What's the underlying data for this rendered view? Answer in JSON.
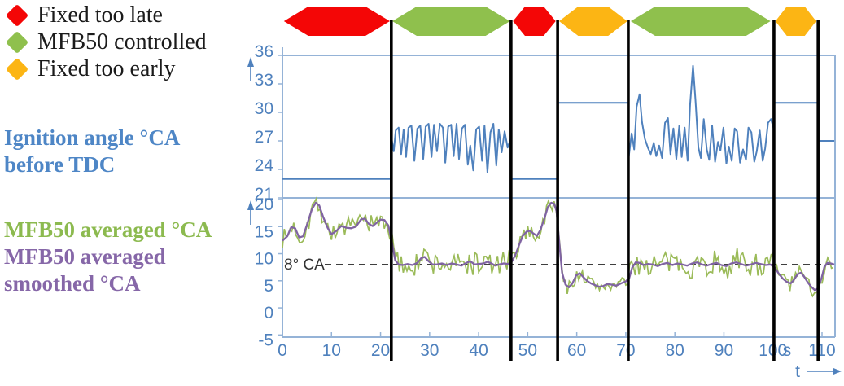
{
  "legend": {
    "items": [
      {
        "label": "Fixed too late",
        "color": "#f40606",
        "shape": "diamond"
      },
      {
        "label": "MFB50 controlled",
        "color": "#8fc04d",
        "shape": "diamond"
      },
      {
        "label": "Fixed too early",
        "color": "#fcb514",
        "shape": "diamond"
      }
    ]
  },
  "side_labels": {
    "ignition": {
      "lines": [
        "Ignition angle °CA",
        "before TDC"
      ],
      "color": "#4e86c6"
    },
    "mfb_averaged": {
      "lines": [
        "MFB50 averaged °CA"
      ],
      "color": "#8cba4f"
    },
    "mfb_smoothed": {
      "lines": [
        "MFB50 averaged",
        "smoothed °CA"
      ],
      "color": "#8667a8"
    }
  },
  "chart_data": {
    "type": "line",
    "title": "",
    "x_axis": {
      "min": 0,
      "max": 112.6,
      "ticks": [
        0,
        10,
        20,
        30,
        40,
        50,
        60,
        70,
        80,
        90,
        100,
        110
      ],
      "unit_label": "s",
      "axis_arrow_label": "t"
    },
    "panels": {
      "ignition": {
        "label": "Ignition angle °CA before TDC",
        "y_ticks": [
          21,
          24,
          27,
          30,
          33,
          36
        ],
        "y_min": 21,
        "y_max": 36
      },
      "mfb50": {
        "label": "MFB50 averaged °CA",
        "y_ticks": [
          -5,
          0,
          5,
          10,
          15,
          20
        ],
        "y_min": -5.4,
        "y_max": 20.3
      }
    },
    "reference_line": {
      "panel": "mfb50",
      "value": 8,
      "label": "8° CA",
      "style": "dashed",
      "color": "#3f3f3f"
    },
    "mode_bands": [
      {
        "mode": "Fixed too late",
        "color": "red",
        "t0": 0.3,
        "t1": 21.9
      },
      {
        "mode": "MFB50 controlled",
        "color": "green",
        "t0": 22.4,
        "t1": 46.4
      },
      {
        "mode": "Fixed too late",
        "color": "red",
        "t0": 47.0,
        "t1": 55.7
      },
      {
        "mode": "Fixed too early",
        "color": "orange",
        "t0": 56.4,
        "t1": 70.3
      },
      {
        "mode": "MFB50 controlled",
        "color": "green",
        "t0": 71.0,
        "t1": 99.5
      },
      {
        "mode": "Fixed too early",
        "color": "orange",
        "t0": 100.5,
        "t1": 108.8
      }
    ],
    "segment_boundaries_t": [
      22.2,
      46.6,
      56.1,
      70.5,
      100.2,
      109.2
    ],
    "colors": {
      "frame": "#95b3d7",
      "tick_text": "#4f81bd",
      "red": "#f40606",
      "green": "#8fc04d",
      "orange": "#fcb514"
    },
    "series": [
      {
        "id": "ignition_angle",
        "panel": "ignition",
        "color": "#4f81bd",
        "width": 2,
        "points": [
          [
            0,
            23
          ],
          [
            22.2,
            23
          ],
          [
            22.2,
            27.4
          ],
          [
            22.7,
            25.9
          ],
          [
            23.1,
            28.1
          ],
          [
            23.7,
            28.4
          ],
          [
            24.2,
            25.6
          ],
          [
            24.7,
            28.2
          ],
          [
            25.2,
            25.3
          ],
          [
            25.7,
            28.4
          ],
          [
            26.3,
            28.6
          ],
          [
            26.9,
            24.9
          ],
          [
            27.5,
            28.3
          ],
          [
            28.1,
            28.6
          ],
          [
            28.7,
            25.1
          ],
          [
            29.2,
            28.5
          ],
          [
            29.8,
            28.8
          ],
          [
            30.4,
            25.3
          ],
          [
            30.9,
            28.7
          ],
          [
            31.5,
            25.9
          ],
          [
            32.1,
            28.8
          ],
          [
            32.7,
            28.4
          ],
          [
            33.2,
            24.7
          ],
          [
            33.8,
            28.5
          ],
          [
            34.4,
            28.7
          ],
          [
            34.9,
            25.4
          ],
          [
            35.5,
            28.8
          ],
          [
            36,
            25.1
          ],
          [
            36.6,
            28.3
          ],
          [
            37.2,
            28.7
          ],
          [
            37.8,
            24.5
          ],
          [
            38.3,
            26.5
          ],
          [
            38.9,
            23.9
          ],
          [
            39.5,
            28.2
          ],
          [
            40.1,
            28.5
          ],
          [
            40.7,
            24.9
          ],
          [
            41.2,
            28.6
          ],
          [
            41.8,
            23.7
          ],
          [
            42.4,
            27.9
          ],
          [
            43,
            28.8
          ],
          [
            43.6,
            24.4
          ],
          [
            44.1,
            28.2
          ],
          [
            44.7,
            25.8
          ],
          [
            45.3,
            28
          ],
          [
            45.9,
            26.3
          ],
          [
            46.6,
            27.3
          ],
          [
            46.6,
            23
          ],
          [
            56.1,
            23
          ],
          [
            56.1,
            31
          ],
          [
            70.5,
            31
          ],
          [
            70.6,
            25.3
          ],
          [
            71.2,
            27.8
          ],
          [
            71.7,
            26.1
          ],
          [
            72.2,
            30.6
          ],
          [
            72.8,
            31.9
          ],
          [
            73.3,
            29
          ],
          [
            73.9,
            27.2
          ],
          [
            74.5,
            26.3
          ],
          [
            75.1,
            25.6
          ],
          [
            75.7,
            26.8
          ],
          [
            76.2,
            25.4
          ],
          [
            76.8,
            26.5
          ],
          [
            77.4,
            25.2
          ],
          [
            78,
            28.9
          ],
          [
            78.6,
            29.4
          ],
          [
            79.1,
            25.6
          ],
          [
            79.7,
            28.3
          ],
          [
            80.3,
            25.1
          ],
          [
            80.9,
            28.6
          ],
          [
            81.4,
            25.3
          ],
          [
            82,
            28.4
          ],
          [
            82.6,
            24.9
          ],
          [
            83.1,
            30.8
          ],
          [
            83.7,
            34.9
          ],
          [
            84.2,
            31.3
          ],
          [
            84.8,
            26.3
          ],
          [
            85.3,
            25.2
          ],
          [
            85.9,
            29.3
          ],
          [
            86.5,
            26.1
          ],
          [
            87,
            25
          ],
          [
            87.6,
            28.6
          ],
          [
            88.2,
            24.8
          ],
          [
            88.8,
            26.9
          ],
          [
            89.3,
            26
          ],
          [
            89.9,
            28.4
          ],
          [
            90.5,
            24.6
          ],
          [
            91,
            26.4
          ],
          [
            91.6,
            24.9
          ],
          [
            92.2,
            28.3
          ],
          [
            92.7,
            28
          ],
          [
            93.3,
            24.7
          ],
          [
            93.9,
            26.1
          ],
          [
            94.5,
            25
          ],
          [
            95,
            28.4
          ],
          [
            95.6,
            27.9
          ],
          [
            96.2,
            24.8
          ],
          [
            96.7,
            25.9
          ],
          [
            97.3,
            28.1
          ],
          [
            97.9,
            24.9
          ],
          [
            98.4,
            26.2
          ],
          [
            99,
            28.9
          ],
          [
            99.6,
            29.3
          ],
          [
            100.2,
            28.2
          ],
          [
            100.2,
            31
          ],
          [
            109.2,
            31
          ],
          [
            109.2,
            27
          ],
          [
            112.5,
            27
          ]
        ]
      },
      {
        "id": "mfb50_smoothed",
        "panel": "mfb50",
        "color": "#8064a2",
        "width": 2.3,
        "points": [
          [
            0,
            12.4
          ],
          [
            1,
            13.2
          ],
          [
            1.8,
            14.9
          ],
          [
            2.6,
            14.7
          ],
          [
            3.4,
            13
          ],
          [
            4.2,
            13.2
          ],
          [
            5,
            15.3
          ],
          [
            6,
            18.2
          ],
          [
            6.8,
            19.4
          ],
          [
            7.5,
            18.9
          ],
          [
            8.3,
            16.8
          ],
          [
            9.2,
            14.8
          ],
          [
            10,
            13.6
          ],
          [
            11,
            14.2
          ],
          [
            12,
            15.1
          ],
          [
            13,
            14.8
          ],
          [
            14,
            14.7
          ],
          [
            15,
            15
          ],
          [
            16,
            16.3
          ],
          [
            16.8,
            16.5
          ],
          [
            17.6,
            15.5
          ],
          [
            18.4,
            15.1
          ],
          [
            19.2,
            15.7
          ],
          [
            20,
            16.3
          ],
          [
            20.8,
            16.2
          ],
          [
            21.6,
            15.2
          ],
          [
            22.3,
            12.2
          ],
          [
            23,
            8.8
          ],
          [
            23.7,
            8
          ],
          [
            24.5,
            7.9
          ],
          [
            25.5,
            8.1
          ],
          [
            26.5,
            7.9
          ],
          [
            27.5,
            8.3
          ],
          [
            28.3,
            9.2
          ],
          [
            29,
            9.4
          ],
          [
            29.8,
            8.6
          ],
          [
            30.6,
            8
          ],
          [
            31.5,
            8
          ],
          [
            32.5,
            8.2
          ],
          [
            33.5,
            7.9
          ],
          [
            34.5,
            8.2
          ],
          [
            35.5,
            8
          ],
          [
            36.5,
            7.8
          ],
          [
            37.5,
            8.3
          ],
          [
            38.3,
            8.6
          ],
          [
            39.2,
            8
          ],
          [
            40,
            8.1
          ],
          [
            41,
            8.2
          ],
          [
            41.8,
            8.5
          ],
          [
            42.6,
            8.2
          ],
          [
            43.4,
            7.8
          ],
          [
            44.2,
            8
          ],
          [
            45.1,
            8.2
          ],
          [
            46,
            8.1
          ],
          [
            46.8,
            8.6
          ],
          [
            47.5,
            9.8
          ],
          [
            48.2,
            11.5
          ],
          [
            49,
            13.3
          ],
          [
            49.8,
            14.1
          ],
          [
            50.5,
            14.2
          ],
          [
            51.2,
            13.7
          ],
          [
            51.9,
            13.3
          ],
          [
            52.6,
            14.4
          ],
          [
            53.4,
            16.5
          ],
          [
            54.1,
            18.6
          ],
          [
            54.8,
            19.4
          ],
          [
            55.4,
            19.2
          ],
          [
            55.9,
            17.8
          ],
          [
            56.4,
            12.5
          ],
          [
            57,
            6.5
          ],
          [
            57.7,
            4.3
          ],
          [
            58.4,
            3.8
          ],
          [
            59.1,
            4.5
          ],
          [
            59.9,
            6
          ],
          [
            60.6,
            6.4
          ],
          [
            61.3,
            5.7
          ],
          [
            62.1,
            5
          ],
          [
            62.9,
            4.5
          ],
          [
            63.7,
            4.2
          ],
          [
            64.5,
            3.9
          ],
          [
            65.3,
            4
          ],
          [
            66.2,
            4.4
          ],
          [
            67.1,
            4.3
          ],
          [
            68,
            4.1
          ],
          [
            69,
            4.5
          ],
          [
            70,
            4.9
          ],
          [
            70.7,
            5.5
          ],
          [
            71.3,
            7.4
          ],
          [
            72,
            8.4
          ],
          [
            72.8,
            8.3
          ],
          [
            73.6,
            7.9
          ],
          [
            74.5,
            8.1
          ],
          [
            75.5,
            8
          ],
          [
            76.5,
            7.7
          ],
          [
            77.5,
            8.1
          ],
          [
            78.5,
            8.3
          ],
          [
            79.5,
            7.9
          ],
          [
            80.5,
            8.2
          ],
          [
            81.5,
            8
          ],
          [
            82.5,
            7.8
          ],
          [
            83.5,
            8.2
          ],
          [
            84.5,
            8.4
          ],
          [
            85.5,
            8
          ],
          [
            86.5,
            7.8
          ],
          [
            87.5,
            8.1
          ],
          [
            88.5,
            8.3
          ],
          [
            89.5,
            7.9
          ],
          [
            90.5,
            7.7
          ],
          [
            91.5,
            8.2
          ],
          [
            92.5,
            8.4
          ],
          [
            93.5,
            8.1
          ],
          [
            94.5,
            7.8
          ],
          [
            95.5,
            8
          ],
          [
            96.5,
            8.3
          ],
          [
            97.5,
            8.1
          ],
          [
            98.5,
            7.9
          ],
          [
            99.5,
            8
          ],
          [
            100.4,
            7.4
          ],
          [
            101.2,
            6.3
          ],
          [
            102,
            5.4
          ],
          [
            102.8,
            4.8
          ],
          [
            103.6,
            4.5
          ],
          [
            104.3,
            5.2
          ],
          [
            105,
            6.2
          ],
          [
            105.7,
            6.5
          ],
          [
            106.4,
            5.7
          ],
          [
            107.1,
            4.7
          ],
          [
            107.8,
            3.9
          ],
          [
            108.5,
            3.3
          ],
          [
            109.2,
            3.6
          ],
          [
            109.9,
            5.5
          ],
          [
            110.5,
            7.6
          ],
          [
            111.1,
            8.3
          ],
          [
            111.8,
            8.2
          ],
          [
            112.5,
            8
          ]
        ]
      },
      {
        "id": "mfb50_averaged",
        "panel": "mfb50",
        "color": "#9bbb59",
        "width": 1.7,
        "derived": {
          "base": "mfb50_smoothed",
          "samples_per_s": 2.6,
          "seed": 7,
          "amplitude_segments": [
            {
              "t0": 0,
              "t1": 22.2,
              "amp": 2.2
            },
            {
              "t0": 22.2,
              "t1": 46.6,
              "amp": 2.8
            },
            {
              "t0": 46.6,
              "t1": 56.2,
              "amp": 1.7
            },
            {
              "t0": 56.2,
              "t1": 70.5,
              "amp": 1.6
            },
            {
              "t0": 70.5,
              "t1": 100.2,
              "amp": 2.8
            },
            {
              "t0": 100.2,
              "t1": 109.2,
              "amp": 1.9
            },
            {
              "t0": 109.2,
              "t1": 112.6,
              "amp": 1.6
            }
          ]
        }
      }
    ]
  }
}
